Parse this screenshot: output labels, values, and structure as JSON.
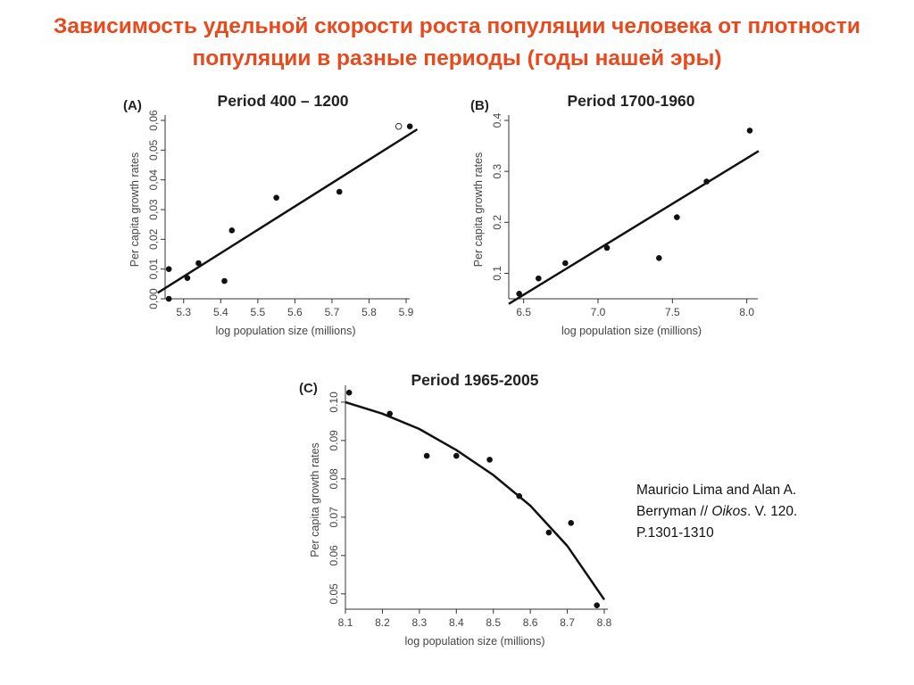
{
  "slide": {
    "title": "Зависимость удельной скорости роста популяции человека от плотности популяции в разные периоды (годы нашей эры)"
  },
  "citation": {
    "line1": "Mauricio Lima and Alan A.",
    "line2a": "Berryman // ",
    "journal": "Oikos",
    "line2b": ". V. 120.",
    "line3": "P.1301-1310"
  },
  "chart_data": [
    {
      "type": "scatter",
      "panel": "(A)",
      "title": "Period 400 – 1200",
      "xlabel": "log population size (millions)",
      "ylabel": "Per capita growth rates",
      "xlim": [
        5.25,
        5.9
      ],
      "ylim": [
        0.0,
        0.06
      ],
      "xticks": [
        "5.3",
        "5.4",
        "5.5",
        "5.6",
        "5.7",
        "5.8",
        "5.9"
      ],
      "yticks": [
        "0,00",
        "0,01",
        "0,02",
        "0,03",
        "0,04",
        "0,05",
        "0,06"
      ],
      "grid": false,
      "points": [
        {
          "x": 5.26,
          "y": 0.0
        },
        {
          "x": 5.26,
          "y": 0.01
        },
        {
          "x": 5.31,
          "y": 0.007
        },
        {
          "x": 5.34,
          "y": 0.012
        },
        {
          "x": 5.41,
          "y": 0.006
        },
        {
          "x": 5.43,
          "y": 0.023
        },
        {
          "x": 5.55,
          "y": 0.034
        },
        {
          "x": 5.72,
          "y": 0.036
        },
        {
          "x": 5.91,
          "y": 0.058
        }
      ],
      "open_points": [
        {
          "x": 5.88,
          "y": 0.058
        }
      ],
      "fit": [
        {
          "x": 5.23,
          "y": 0.002
        },
        {
          "x": 5.93,
          "y": 0.057
        }
      ]
    },
    {
      "type": "scatter",
      "panel": "(B)",
      "title": "Period 1700-1960",
      "xlabel": "log population size (millions)",
      "ylabel": "Per capita growth rates",
      "xlim": [
        6.4,
        8.05
      ],
      "ylim": [
        0.05,
        0.4
      ],
      "xticks": [
        "6.5",
        "7.0",
        "7.5",
        "8.0"
      ],
      "yticks": [
        "0.1",
        "0.2",
        "0.3",
        "0.4"
      ],
      "grid": false,
      "points": [
        {
          "x": 6.47,
          "y": 0.06
        },
        {
          "x": 6.6,
          "y": 0.09
        },
        {
          "x": 6.78,
          "y": 0.12
        },
        {
          "x": 7.06,
          "y": 0.15
        },
        {
          "x": 7.41,
          "y": 0.13
        },
        {
          "x": 7.53,
          "y": 0.21
        },
        {
          "x": 7.73,
          "y": 0.28
        },
        {
          "x": 8.02,
          "y": 0.38
        }
      ],
      "fit": [
        {
          "x": 6.4,
          "y": 0.04
        },
        {
          "x": 8.08,
          "y": 0.34
        }
      ]
    },
    {
      "type": "scatter",
      "panel": "(C)",
      "title": "Period 1965-2005",
      "xlabel": "log population size (millions)",
      "ylabel": "Per capita growth rates",
      "xlim": [
        8.1,
        8.8
      ],
      "ylim": [
        0.046,
        0.103
      ],
      "xticks": [
        "8.1",
        "8.2",
        "8.3",
        "8.4",
        "8.5",
        "8.6",
        "8.7",
        "8.8"
      ],
      "yticks": [
        "0.05",
        "0.06",
        "0.07",
        "0.08",
        "0.09",
        "0.10"
      ],
      "grid": false,
      "points": [
        {
          "x": 8.11,
          "y": 0.1025
        },
        {
          "x": 8.22,
          "y": 0.097
        },
        {
          "x": 8.32,
          "y": 0.086
        },
        {
          "x": 8.4,
          "y": 0.086
        },
        {
          "x": 8.49,
          "y": 0.085
        },
        {
          "x": 8.57,
          "y": 0.0755
        },
        {
          "x": 8.65,
          "y": 0.066
        },
        {
          "x": 8.71,
          "y": 0.0685
        },
        {
          "x": 8.78,
          "y": 0.047
        }
      ],
      "fit": [
        {
          "x": 8.1,
          "y": 0.1
        },
        {
          "x": 8.2,
          "y": 0.097
        },
        {
          "x": 8.3,
          "y": 0.093
        },
        {
          "x": 8.4,
          "y": 0.0875
        },
        {
          "x": 8.5,
          "y": 0.081
        },
        {
          "x": 8.6,
          "y": 0.073
        },
        {
          "x": 8.7,
          "y": 0.0625
        },
        {
          "x": 8.8,
          "y": 0.0485
        }
      ]
    }
  ]
}
